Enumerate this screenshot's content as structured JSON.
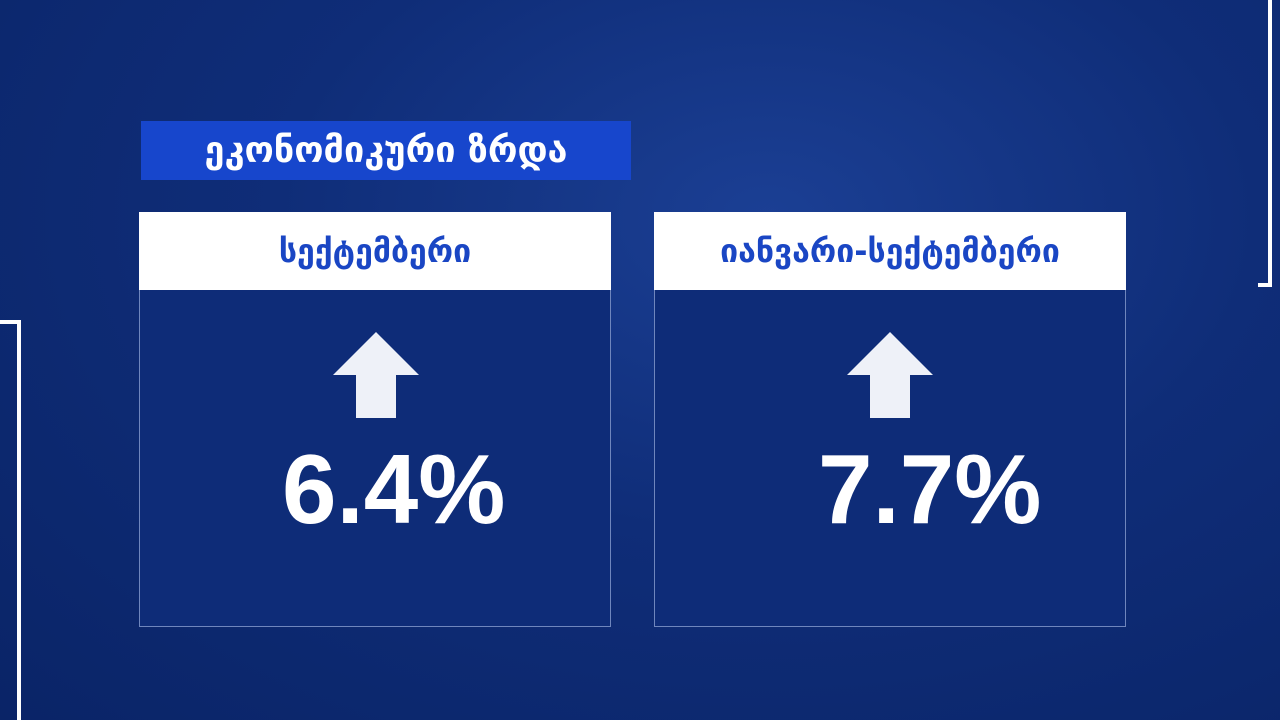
{
  "title": "ეკონომიკური ზრდა",
  "cards": [
    {
      "label": "სექტემბერი",
      "value": "6.4%"
    },
    {
      "label": "იანვარი-სექტემბერი",
      "value": "7.7%"
    }
  ]
}
